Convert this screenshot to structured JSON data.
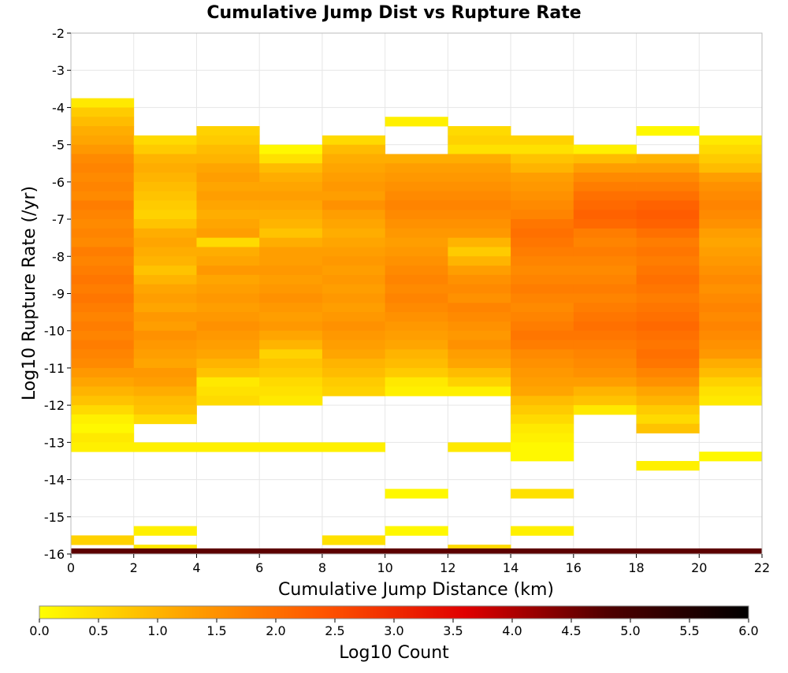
{
  "chart_data": {
    "type": "heatmap",
    "title": "Cumulative Jump Dist vs Rupture Rate",
    "xlabel": "Cumulative Jump Distance (km)",
    "ylabel": "Log10 Rupture Rate (/yr)",
    "colorbar_label": "Log10 Count",
    "xlim": [
      0,
      22
    ],
    "ylim": [
      -16,
      -2
    ],
    "clim": [
      0,
      6
    ],
    "grid": true,
    "x_ticks": [
      "0",
      "2",
      "4",
      "6",
      "8",
      "10",
      "12",
      "14",
      "16",
      "18",
      "20",
      "22"
    ],
    "y_ticks": [
      "-2",
      "-3",
      "-4",
      "-5",
      "-6",
      "-7",
      "-8",
      "-9",
      "-10",
      "-11",
      "-12",
      "-13",
      "-14",
      "-15",
      "-16"
    ],
    "colorbar_ticks": [
      "0.0",
      "0.5",
      "1.0",
      "1.5",
      "2.0",
      "2.5",
      "3.0",
      "3.5",
      "4.0",
      "4.5",
      "5.0",
      "5.5",
      "6.0"
    ],
    "colormap": [
      "#ffff00",
      "#ffa500",
      "#ff5500",
      "#e00000",
      "#500000",
      "#000000"
    ],
    "bin_width_x": 2,
    "bin_height_y": 0.25,
    "columns": [
      {
        "x": 0,
        "runs": [
          {
            "y0": -3.75,
            "v": [
              0.3,
              0.7,
              0.9,
              1.1,
              1.2,
              1.4,
              1.6,
              1.7,
              1.6,
              1.7,
              1.6,
              1.8,
              1.7,
              1.6,
              1.7,
              1.6,
              1.8,
              1.7,
              1.8,
              1.9,
              1.8,
              1.9,
              1.8,
              1.7,
              1.8,
              1.7,
              1.8,
              1.7,
              1.6,
              1.4,
              1.2,
              1.0,
              0.8,
              0.5,
              0.2,
              0.1,
              0.3,
              0.2
            ]
          },
          {
            "y0": -15.5,
            "v": [
              0.6
            ]
          }
        ]
      },
      {
        "x": 2,
        "runs": [
          {
            "y0": -4.75,
            "v": [
              0.5,
              0.7,
              1.0,
              1.1,
              1.0,
              0.9,
              0.8,
              0.7,
              0.6,
              0.8,
              1.1,
              1.2,
              1.1,
              1.0,
              0.8,
              1.0,
              1.2,
              1.3,
              1.2,
              1.4,
              1.3,
              1.5,
              1.4,
              1.3,
              1.2,
              1.4,
              1.3,
              1.1,
              0.9,
              0.8,
              0.5
            ]
          },
          {
            "y0": -13.0,
            "v": [
              0.2
            ]
          },
          {
            "y0": -15.25,
            "v": [
              0.2
            ]
          },
          {
            "y0": -15.75,
            "v": [
              0.3
            ]
          }
        ]
      },
      {
        "x": 4,
        "runs": [
          {
            "y0": -4.5,
            "v": [
              0.6,
              0.7,
              0.9,
              1.0,
              1.2,
              1.3,
              1.2,
              1.3,
              1.2,
              1.1,
              1.2,
              1.3,
              0.5,
              1.1,
              1.2,
              1.4,
              1.2,
              1.3,
              1.4,
              1.3,
              1.4,
              1.5,
              1.4,
              1.3,
              1.2,
              1.0,
              0.8,
              0.3,
              0.4,
              0.5
            ]
          },
          {
            "y0": -13.0,
            "v": [
              0.2
            ]
          }
        ]
      },
      {
        "x": 6,
        "runs": [
          {
            "y0": -5.0,
            "v": [
              0.1,
              0.4,
              0.9,
              1.1,
              1.2,
              1.3,
              1.2,
              1.1,
              1.0,
              0.8,
              1.1,
              1.3,
              1.3,
              1.4,
              1.3,
              1.4,
              1.5,
              1.4,
              1.3,
              1.4,
              1.2,
              1.0,
              0.6,
              0.8,
              0.7,
              0.5,
              0.4,
              0.3
            ]
          },
          {
            "y0": -13.0,
            "v": [
              0.2
            ]
          }
        ]
      },
      {
        "x": 8,
        "runs": [
          {
            "y0": -4.75,
            "v": [
              0.5,
              0.9,
              1.1,
              1.2,
              1.3,
              1.4,
              1.3,
              1.5,
              1.3,
              1.2,
              1.1,
              1.2,
              1.3,
              1.4,
              1.3,
              1.4,
              1.3,
              1.4,
              1.3,
              1.4,
              1.5,
              1.4,
              1.3,
              1.2,
              1.0,
              0.9,
              0.7,
              0.6
            ]
          },
          {
            "y0": -13.0,
            "v": [
              0.2
            ]
          },
          {
            "y0": -15.5,
            "v": [
              0.4
            ]
          }
        ]
      },
      {
        "x": 10,
        "runs": [
          {
            "y0": -4.25,
            "v": [
              0.2
            ]
          },
          {
            "y0": -5.25,
            "v": [
              1.1,
              1.3,
              1.4,
              1.5,
              1.6,
              1.7,
              1.6,
              1.5,
              1.4,
              1.3,
              1.4,
              1.5,
              1.6,
              1.7,
              1.6,
              1.7,
              1.6,
              1.5,
              1.4,
              1.3,
              1.2,
              1.0,
              0.9,
              0.7,
              0.3,
              0.2
            ]
          },
          {
            "y0": -14.25,
            "v": [
              0.1
            ]
          },
          {
            "y0": -15.25,
            "v": [
              0.1
            ]
          }
        ]
      },
      {
        "x": 12,
        "runs": [
          {
            "y0": -4.5,
            "v": [
              0.5,
              0.6,
              0.4
            ]
          },
          {
            "y0": -5.25,
            "v": [
              1.1,
              1.3,
              1.4,
              1.5,
              1.6,
              1.7,
              1.6,
              1.5,
              1.4,
              1.0,
              0.7,
              1.0,
              1.3,
              1.5,
              1.6,
              1.5,
              1.7,
              1.6,
              1.5,
              1.4,
              1.5,
              1.3,
              1.2,
              0.9,
              0.6,
              0.2
            ]
          },
          {
            "y0": -13.0,
            "v": [
              0.3
            ]
          },
          {
            "y0": -15.75,
            "v": [
              0.5
            ]
          }
        ]
      },
      {
        "x": 14,
        "runs": [
          {
            "y0": -4.75,
            "v": [
              0.6,
              0.4,
              0.8,
              1.0,
              1.3,
              1.4,
              1.5,
              1.6,
              1.7,
              1.9,
              2.0,
              1.9,
              1.8,
              1.7,
              1.6,
              1.7,
              1.8,
              1.7,
              1.6,
              1.7,
              1.8,
              1.9,
              1.8,
              1.6,
              1.5,
              1.4,
              1.3,
              1.2,
              0.9,
              0.7,
              0.5,
              0.3,
              0.2,
              0.1,
              0.1
            ]
          },
          {
            "y0": -14.25,
            "v": [
              0.4
            ]
          },
          {
            "y0": -15.25,
            "v": [
              0.2
            ]
          }
        ]
      },
      {
        "x": 16,
        "runs": [
          {
            "y0": -5.0,
            "v": [
              0.2,
              0.9,
              1.3,
              1.6,
              1.8,
              2.0,
              2.1,
              2.2,
              2.1,
              1.8,
              1.7,
              1.8,
              1.7,
              1.6,
              1.7,
              1.8,
              1.7,
              1.8,
              1.9,
              2.0,
              1.9,
              1.8,
              1.7,
              1.6,
              1.5,
              1.3,
              1.0,
              0.8,
              0.3
            ]
          }
        ]
      },
      {
        "x": 18,
        "runs": [
          {
            "y0": -4.5,
            "v": [
              0.1
            ]
          },
          {
            "y0": -5.25,
            "v": [
              1.0,
              1.3,
              1.6,
              1.8,
              2.0,
              2.2,
              2.3,
              2.2,
              2.0,
              1.8,
              1.9,
              1.8,
              1.9,
              2.0,
              1.9,
              1.8,
              1.9,
              2.0,
              2.1,
              2.0,
              1.9,
              2.0,
              1.9,
              1.7,
              1.5,
              1.2,
              1.0,
              0.7,
              0.5,
              0.8
            ]
          },
          {
            "y0": -13.5,
            "v": [
              0.2
            ]
          }
        ]
      },
      {
        "x": 20,
        "runs": [
          {
            "y0": -4.75,
            "v": [
              0.3,
              0.5,
              0.7,
              0.9,
              1.3,
              1.5,
              1.6,
              1.7,
              1.6,
              1.5,
              1.3,
              1.2,
              1.3,
              1.4,
              1.5,
              1.6,
              1.5,
              1.6,
              1.7,
              1.6,
              1.7,
              1.6,
              1.5,
              1.4,
              1.1,
              0.9,
              0.6,
              0.4,
              0.3
            ]
          },
          {
            "y0": -13.25,
            "v": [
              0.1
            ]
          }
        ]
      }
    ],
    "bottom_band": {
      "y0": -16.0,
      "y1": -15.85,
      "v": 4.7
    }
  }
}
